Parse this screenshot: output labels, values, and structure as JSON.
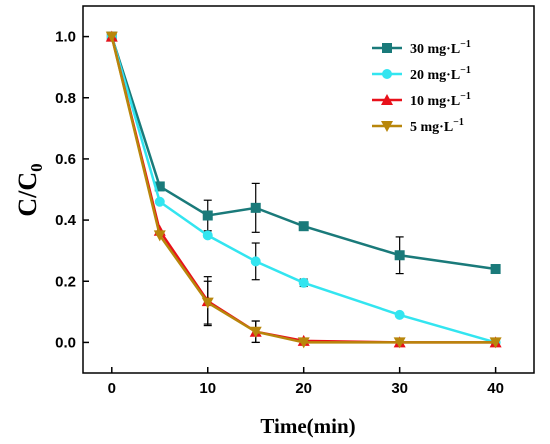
{
  "chart_data": {
    "type": "line",
    "title": "",
    "xlabel": "Time(min)",
    "ylabel": "C/C0",
    "ylabel_main": "C/C",
    "ylabel_sub": "0",
    "xlim": [
      -3,
      44
    ],
    "ylim": [
      -0.1,
      1.1
    ],
    "xticks": [
      0,
      10,
      20,
      30,
      40
    ],
    "xtick_labels": [
      "0",
      "10",
      "20",
      "30",
      "40"
    ],
    "yticks": [
      0.0,
      0.2,
      0.4,
      0.6,
      0.8,
      1.0
    ],
    "ytick_labels": [
      "0.0",
      "0.2",
      "0.4",
      "0.6",
      "0.8",
      "1.0"
    ],
    "grid": false,
    "legend_position": "top-right",
    "x": [
      0,
      5,
      10,
      15,
      20,
      30,
      40
    ],
    "series": [
      {
        "name": "30 mg·L",
        "superscript": "−1",
        "color": "#1a7a7a",
        "marker": "square",
        "values": [
          1.0,
          0.51,
          0.415,
          0.44,
          0.38,
          0.285,
          0.24
        ],
        "errors": [
          0,
          0.012,
          0.05,
          0.08,
          0,
          0.06,
          0
        ]
      },
      {
        "name": "20 mg·L",
        "superscript": "−1",
        "color": "#33e5f0",
        "marker": "circle",
        "values": [
          1.0,
          0.46,
          0.35,
          0.265,
          0.195,
          0.09,
          0.0
        ],
        "errors": [
          0,
          0,
          0,
          0.06,
          0.012,
          0,
          0
        ]
      },
      {
        "name": "10 mg·L",
        "superscript": "−1",
        "color": "#e8111a",
        "marker": "triangle-up",
        "values": [
          1.0,
          0.365,
          0.135,
          0.035,
          0.005,
          0.0,
          0.0
        ],
        "errors": [
          0,
          0,
          0.08,
          0.035,
          0,
          0,
          0
        ]
      },
      {
        "name": "5  mg·L",
        "superscript": "−1",
        "color": "#b8860b",
        "marker": "triangle-down",
        "values": [
          1.0,
          0.35,
          0.13,
          0.035,
          0.0,
          0.0,
          0.0
        ],
        "errors": [
          0,
          0,
          0.07,
          0.035,
          0,
          0,
          0
        ]
      }
    ]
  }
}
